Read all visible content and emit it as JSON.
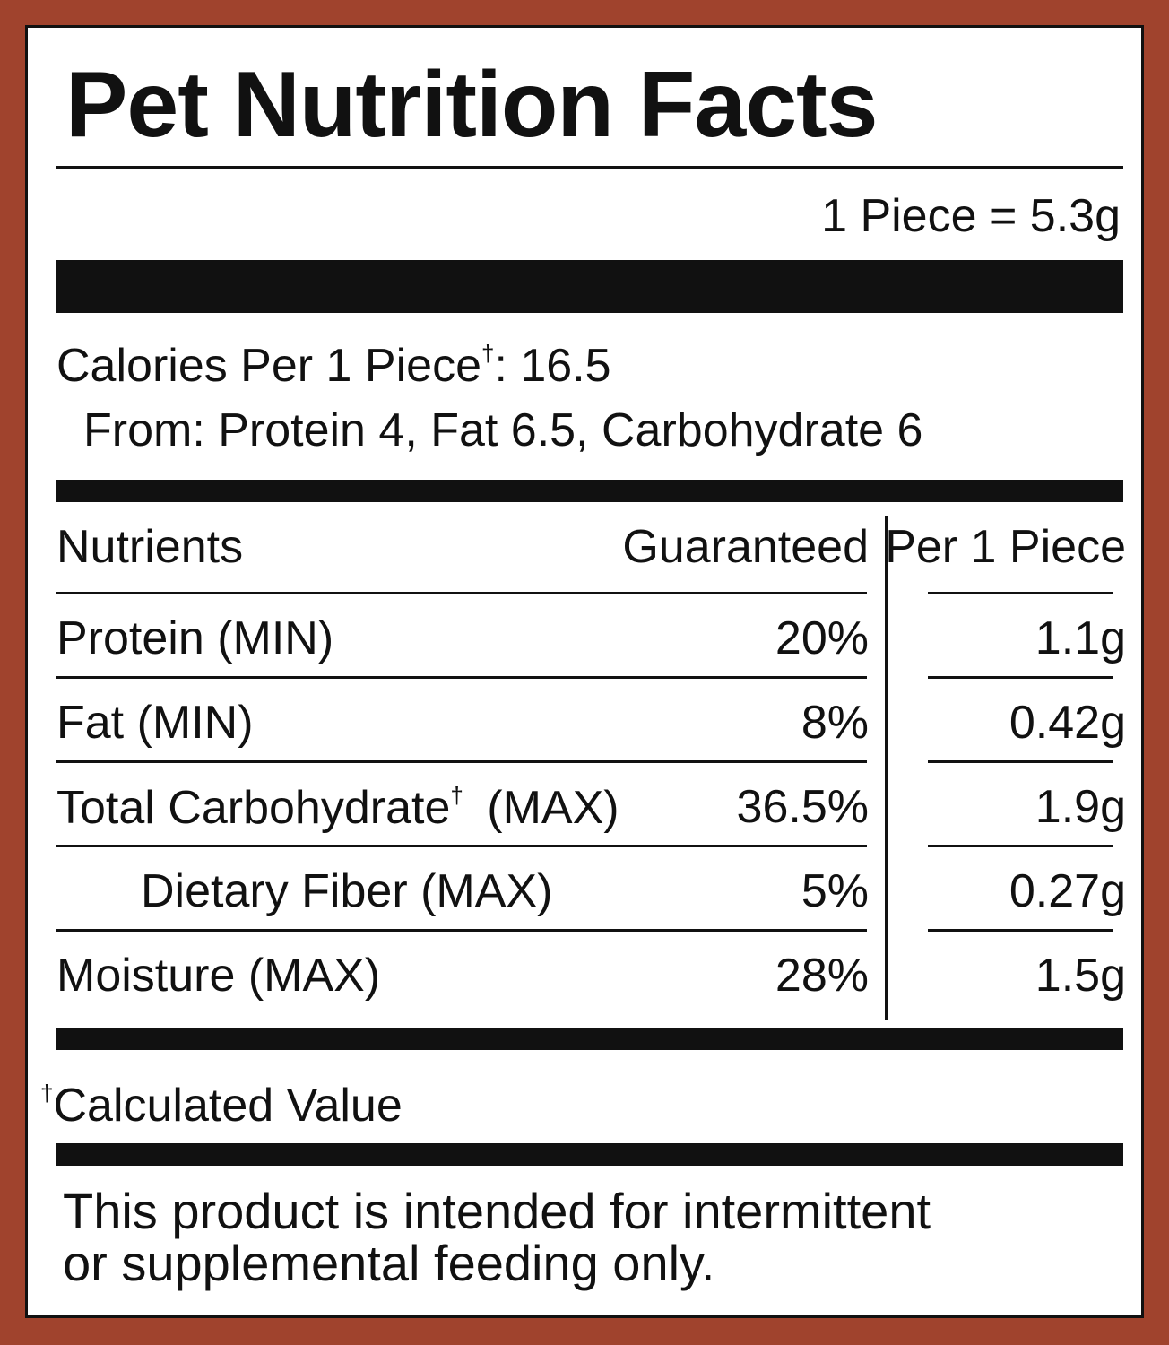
{
  "title": "Pet Nutrition Facts",
  "serving": "1 Piece = 5.3g",
  "calories": {
    "label": "Calories Per 1 Piece",
    "mark": "†",
    "value": ": 16.5"
  },
  "calories_from": "From: Protein 4, Fat 6.5, Carbohydrate 6",
  "table": {
    "header": [
      "Nutrients",
      "Guaranteed",
      "Per 1 Piece"
    ],
    "rows": [
      {
        "nutrient": "Protein (MIN)",
        "guaranteed": "20%",
        "per_piece": "1.1g"
      },
      {
        "nutrient": "Fat (MIN)",
        "guaranteed": "8%",
        "per_piece": "0.42g"
      },
      {
        "nutrient": "Total Carbohydrate",
        "mark": "†",
        "qualifier": "(MAX)",
        "guaranteed": "36.5%",
        "per_piece": "1.9g"
      },
      {
        "nutrient": "Dietary Fiber (MAX)",
        "guaranteed": "5%",
        "per_piece": "0.27g"
      },
      {
        "nutrient": "Moisture (MAX)",
        "guaranteed": "28%",
        "per_piece": "1.5g"
      }
    ]
  },
  "footnote": {
    "mark": "†",
    "text": "Calculated Value"
  },
  "disclaimer": [
    "This product is intended for intermittent",
    "or supplemental feeding only."
  ]
}
